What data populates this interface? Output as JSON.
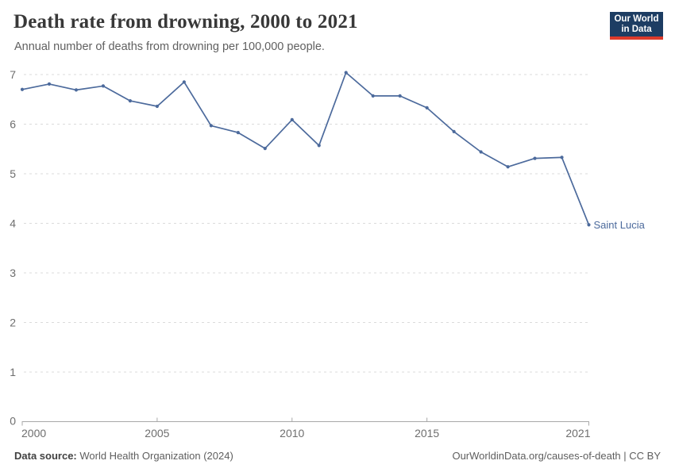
{
  "header": {
    "title": "Death rate from drowning, 2000 to 2021",
    "subtitle": "Annual number of deaths from drowning per 100,000 people.",
    "logo": {
      "line1": "Our World",
      "line2": "in Data"
    }
  },
  "chart_data": {
    "type": "line",
    "title": "Death rate from drowning, 2000 to 2021",
    "subtitle": "Annual number of deaths from drowning per 100,000 people.",
    "x": [
      2000,
      2001,
      2002,
      2003,
      2004,
      2005,
      2006,
      2007,
      2008,
      2009,
      2010,
      2011,
      2012,
      2013,
      2014,
      2015,
      2016,
      2017,
      2018,
      2019,
      2020,
      2021
    ],
    "series": [
      {
        "name": "Saint Lucia",
        "color": "#4C6A9C",
        "values": [
          6.7,
          6.81,
          6.69,
          6.77,
          6.47,
          6.36,
          6.85,
          5.97,
          5.83,
          5.51,
          6.09,
          5.57,
          7.04,
          6.57,
          6.57,
          6.33,
          5.85,
          5.44,
          5.14,
          5.31,
          5.33,
          3.97
        ]
      }
    ],
    "xlabel": "",
    "ylabel": "",
    "xlim": [
      2000,
      2021
    ],
    "ylim": [
      0,
      7
    ],
    "yticks": [
      0,
      1,
      2,
      3,
      4,
      5,
      6,
      7
    ],
    "xticks": [
      2000,
      2005,
      2010,
      2015,
      2021
    ],
    "grid": "horizontal-dashed",
    "legend_position": "end-of-line-label",
    "end_label": "Saint Lucia"
  },
  "footer": {
    "source_label": "Data source:",
    "source_value": " World Health Organization (2024)",
    "attribution": "OurWorldinData.org/causes-of-death | CC BY"
  },
  "colors": {
    "line": "#4C6A9C",
    "logo_bg": "#1d3d63",
    "logo_red": "#dc3a2b",
    "grid": "#dbdbdb",
    "axis": "#a8a8a8",
    "tick_text": "#6e6e6e"
  }
}
